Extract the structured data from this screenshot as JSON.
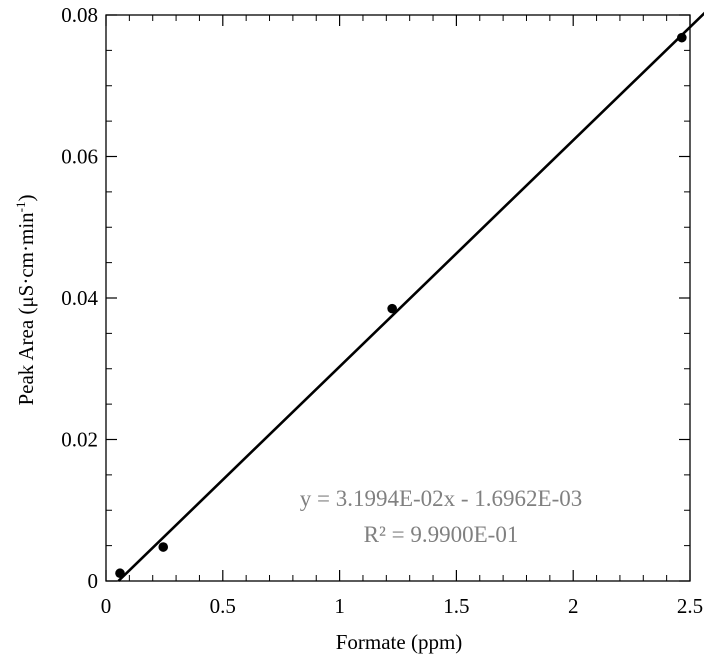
{
  "chart_data": {
    "type": "scatter",
    "xlabel": "Formate (ppm)",
    "ylabel": {
      "main": "Peak Area (μS·cm·min",
      "superscript": "-1",
      "close": ")"
    },
    "xlim": [
      0,
      2.5
    ],
    "ylim": [
      0,
      0.08
    ],
    "x_ticks": [
      {
        "value": 0,
        "label": "0"
      },
      {
        "value": 0.5,
        "label": "0.5"
      },
      {
        "value": 1,
        "label": "1"
      },
      {
        "value": 1.5,
        "label": "1.5"
      },
      {
        "value": 2,
        "label": "2"
      },
      {
        "value": 2.5,
        "label": "2.5"
      }
    ],
    "y_ticks": [
      {
        "value": 0,
        "label": "0"
      },
      {
        "value": 0.02,
        "label": "0.02"
      },
      {
        "value": 0.04,
        "label": "0.04"
      },
      {
        "value": 0.06,
        "label": "0.06"
      },
      {
        "value": 0.08,
        "label": "0.08"
      }
    ],
    "points": [
      {
        "x": 0.06,
        "y": 0.0011
      },
      {
        "x": 0.245,
        "y": 0.0048
      },
      {
        "x": 1.225,
        "y": 0.0385
      },
      {
        "x": 2.465,
        "y": 0.0768
      }
    ],
    "trendline": {
      "slope": 0.031994,
      "intercept": -0.0016962,
      "x_range": [
        0.053,
        2.57
      ],
      "equation": "y = 3.1994E-02x - 1.6962E-03",
      "r_squared": "R² = 9.9900E-01"
    },
    "grid": false,
    "minor_ticks": true,
    "colors": {
      "axis": "#000000",
      "marker": "#000000",
      "line": "#000000",
      "annotation": "#808080"
    }
  }
}
